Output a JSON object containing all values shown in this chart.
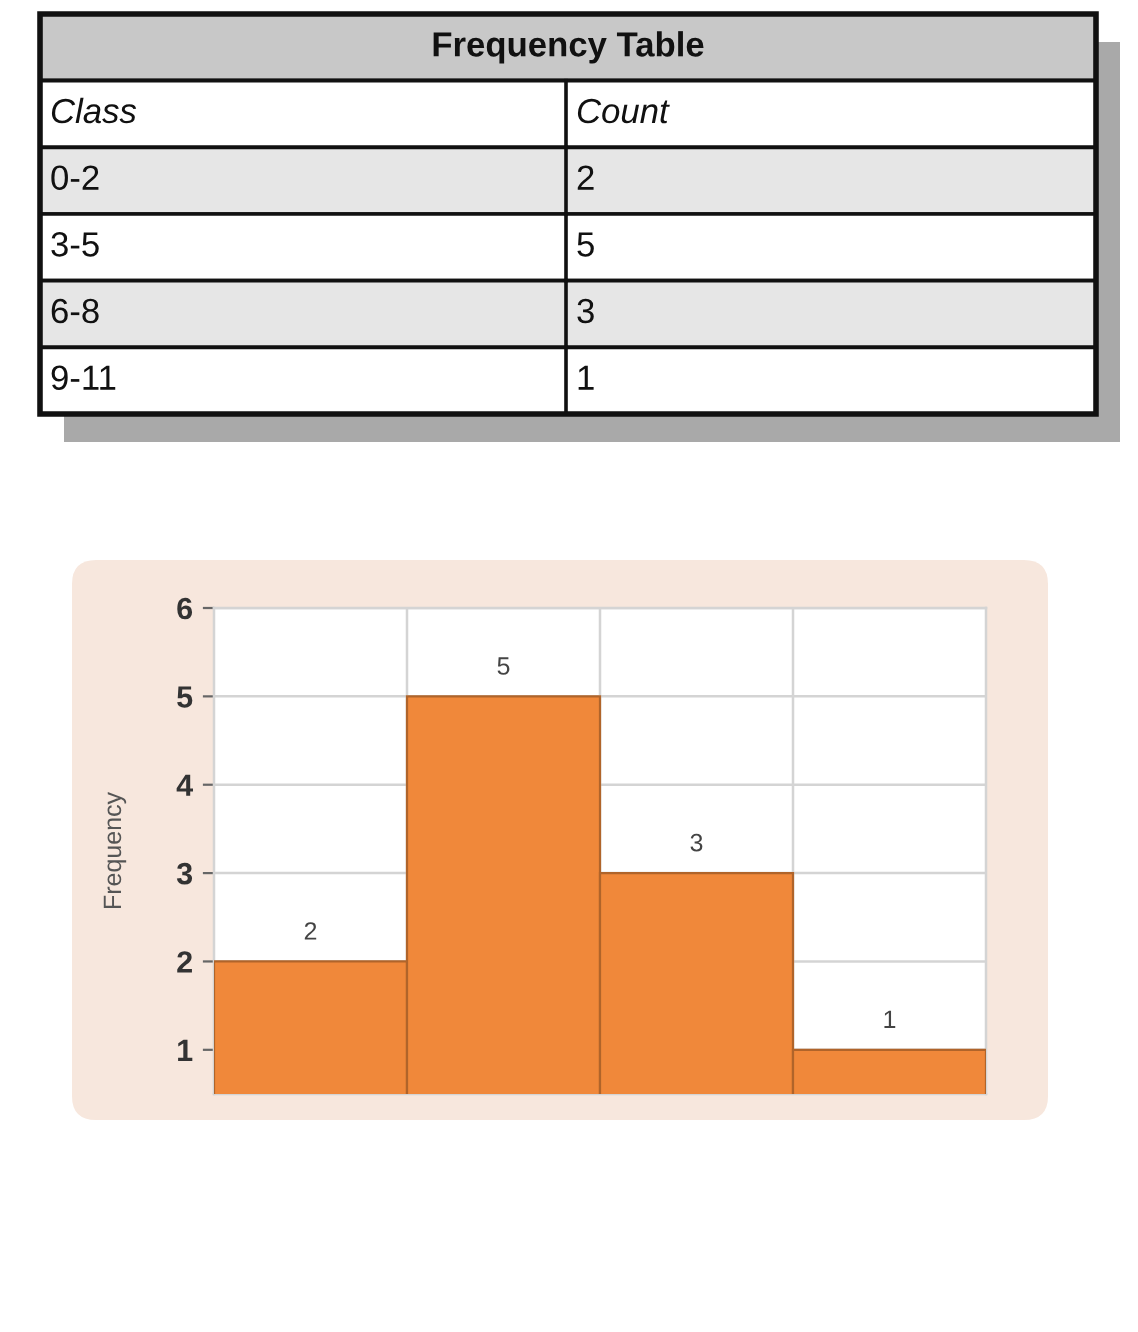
{
  "chart_data": [
    {
      "type": "other",
      "title": "Frequency Table",
      "annotations": [
        "Class",
        "Count"
      ],
      "categories": [
        "0-2",
        "3-5",
        "6-8",
        "9-11"
      ],
      "values": [
        2,
        5,
        3,
        1
      ],
      "data_labels": true
    },
    {
      "type": "bar",
      "categories": [
        null,
        null,
        null,
        null
      ],
      "values": [
        2,
        5,
        3,
        1
      ],
      "color": "#f0883a",
      "ylabel": "Frequency",
      "ylim": [
        0.5,
        6
      ],
      "yticks": [
        1,
        2,
        3,
        4,
        5,
        6
      ],
      "grid": true,
      "data_labels": true,
      "tick_labels": "y"
    }
  ]
}
